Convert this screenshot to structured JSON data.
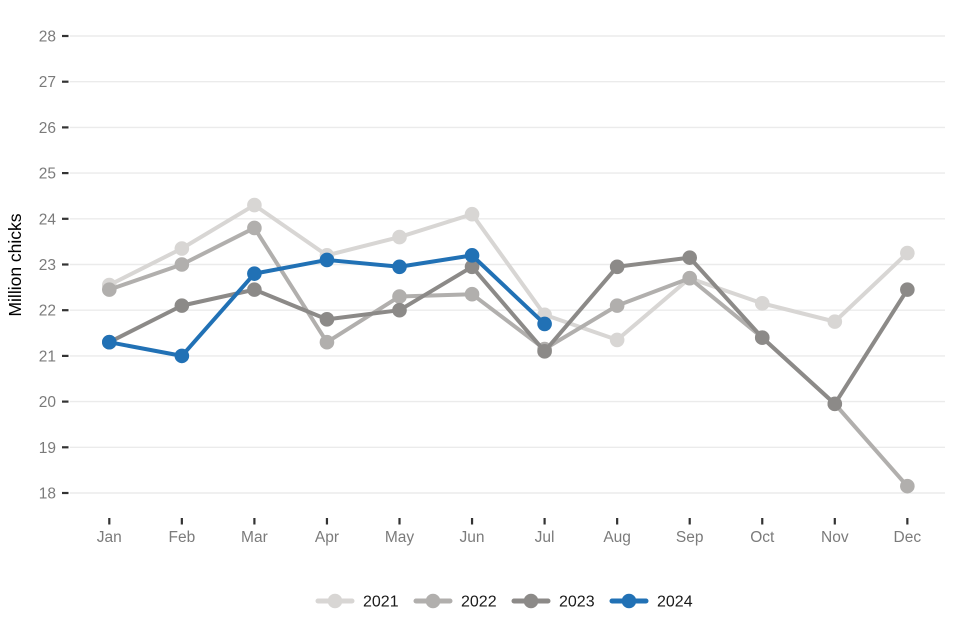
{
  "chart_data": {
    "type": "line",
    "title": "",
    "xlabel": "",
    "ylabel": "Million chicks",
    "ylim": [
      18,
      28
    ],
    "yticks": [
      18,
      19,
      20,
      21,
      22,
      23,
      24,
      25,
      26,
      27,
      28
    ],
    "categories": [
      "Jan",
      "Feb",
      "Mar",
      "Apr",
      "May",
      "Jun",
      "Jul",
      "Aug",
      "Sep",
      "Oct",
      "Nov",
      "Dec"
    ],
    "grid": "horizontal",
    "legend_position": "bottom",
    "series": [
      {
        "name": "2021",
        "color": "#d8d6d4",
        "values": [
          22.55,
          23.35,
          24.3,
          23.2,
          23.6,
          24.1,
          21.9,
          21.35,
          22.7,
          22.15,
          21.75,
          23.25
        ]
      },
      {
        "name": "2022",
        "color": "#b1afad",
        "values": [
          22.45,
          23.0,
          23.8,
          21.3,
          22.3,
          22.35,
          21.15,
          22.1,
          22.7,
          21.4,
          19.95,
          18.15
        ]
      },
      {
        "name": "2023",
        "color": "#8c8a88",
        "values": [
          21.3,
          22.1,
          22.45,
          21.8,
          22.0,
          22.95,
          21.1,
          22.95,
          23.15,
          21.4,
          19.95,
          22.45
        ]
      },
      {
        "name": "2024",
        "color": "#2171b5",
        "values": [
          21.3,
          21.0,
          22.8,
          23.1,
          22.95,
          23.2,
          21.7
        ]
      }
    ]
  },
  "axes": {
    "grid_color": "#ebebeb",
    "tick_color": "#333333",
    "tick_label_color": "#7b7b7b",
    "axis_title_color": "#000000",
    "legend_label_color": "#1a1a1a"
  }
}
